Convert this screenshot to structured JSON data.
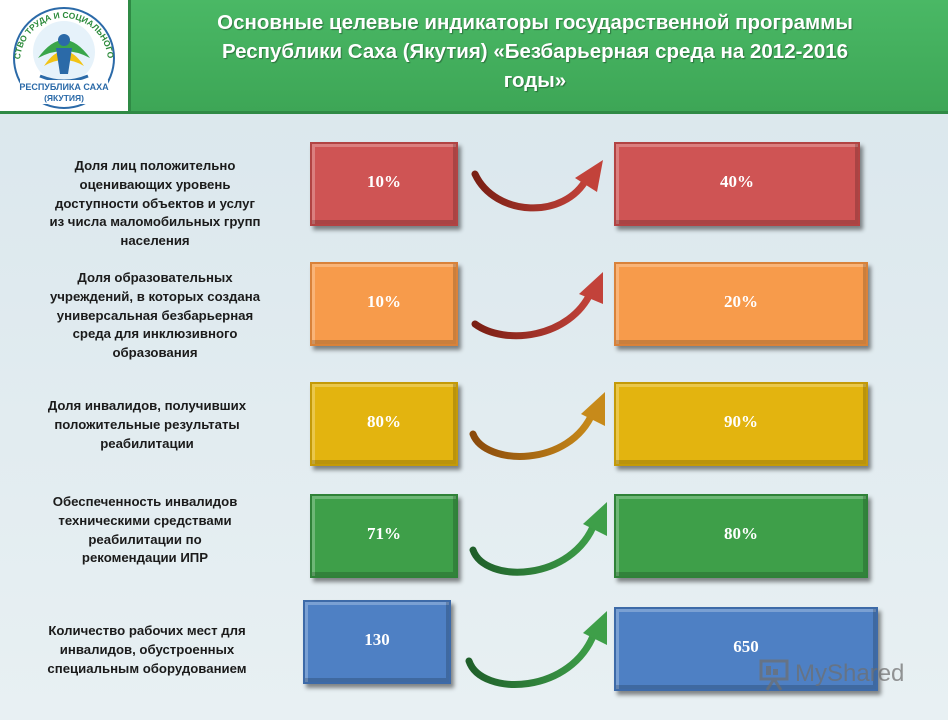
{
  "title": {
    "line1": "Основные целевые индикаторы государственной программы",
    "line2": "Республики Саха (Якутия) «Безбарьерная среда на 2012-2016",
    "line3": "годы»"
  },
  "logo": {
    "ring_text": "МИНИСТЕРСТВО ТРУДА И СОЦИАЛЬНОГО РАЗВИТИЯ",
    "bottom_text1": "РЕСПУБЛИКА САХА",
    "bottom_text2": "(ЯКУТИЯ)"
  },
  "indicators": [
    {
      "label_lines": [
        "Доля лиц положительно",
        "оценивающих уровень",
        "доступности объектов и услуг",
        "из числа маломобильных групп",
        "населения"
      ],
      "start": "10%",
      "target": "40%",
      "color": "#cf5454"
    },
    {
      "label_lines": [
        "Доля образовательных",
        "учреждений, в которых создана",
        "универсальная безбарьерная",
        "среда для инклюзивного",
        "образования"
      ],
      "start": "10%",
      "target": "20%",
      "color": "#f79b4b"
    },
    {
      "label_lines": [
        "Доля инвалидов, получивших",
        "положительные результаты",
        "реабилитации"
      ],
      "start": "80%",
      "target": "90%",
      "color": "#e3b40f"
    },
    {
      "label_lines": [
        "Обеспеченность инвалидов",
        "техническими средствами",
        "реабилитации по",
        "рекомендации ИПР"
      ],
      "start": "71%",
      "target": "80%",
      "color": "#3e9f49"
    },
    {
      "label_lines": [
        "Количество рабочих мест для",
        "инвалидов, обустроенных",
        "специальным оборудованием"
      ],
      "start": "130",
      "target": "650",
      "color": "#4e80c4"
    }
  ],
  "watermark": {
    "text": "MyShared",
    "icon": "presentation-board-icon"
  }
}
